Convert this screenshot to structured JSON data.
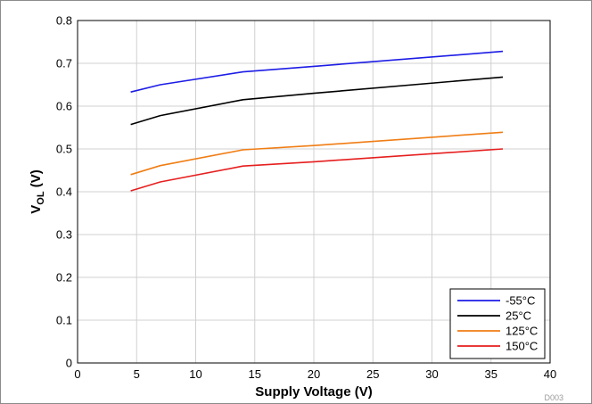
{
  "chart_data": {
    "type": "line",
    "xlabel": "Supply Voltage (V)",
    "ylabel_main": "V",
    "ylabel_sub": "OL",
    "ylabel_unit": " (V)",
    "xlim": [
      0,
      40
    ],
    "ylim": [
      0,
      0.8
    ],
    "xticks": [
      "0",
      "5",
      "10",
      "15",
      "20",
      "25",
      "30",
      "35",
      "40"
    ],
    "yticks": [
      "0",
      "0.1",
      "0.2",
      "0.3",
      "0.4",
      "0.5",
      "0.6",
      "0.7",
      "0.8"
    ],
    "grid": true,
    "legend_position": "bottom-right",
    "series": [
      {
        "name": "-55°C",
        "color": "#1c1ce6",
        "x": [
          4.5,
          7,
          14,
          20,
          36
        ],
        "y": [
          0.633,
          0.65,
          0.68,
          0.693,
          0.728
        ]
      },
      {
        "name": "25°C",
        "color": "#000000",
        "x": [
          4.5,
          7,
          14,
          20,
          36
        ],
        "y": [
          0.557,
          0.578,
          0.615,
          0.63,
          0.668
        ]
      },
      {
        "name": "125°C",
        "color": "#f07d14",
        "x": [
          4.5,
          7,
          14,
          20,
          36
        ],
        "y": [
          0.44,
          0.461,
          0.498,
          0.508,
          0.539
        ]
      },
      {
        "name": "150°C",
        "color": "#e61e1e",
        "x": [
          4.5,
          7,
          14,
          20,
          36
        ],
        "y": [
          0.402,
          0.423,
          0.46,
          0.47,
          0.5
        ]
      }
    ]
  },
  "figure_tag": "D003"
}
